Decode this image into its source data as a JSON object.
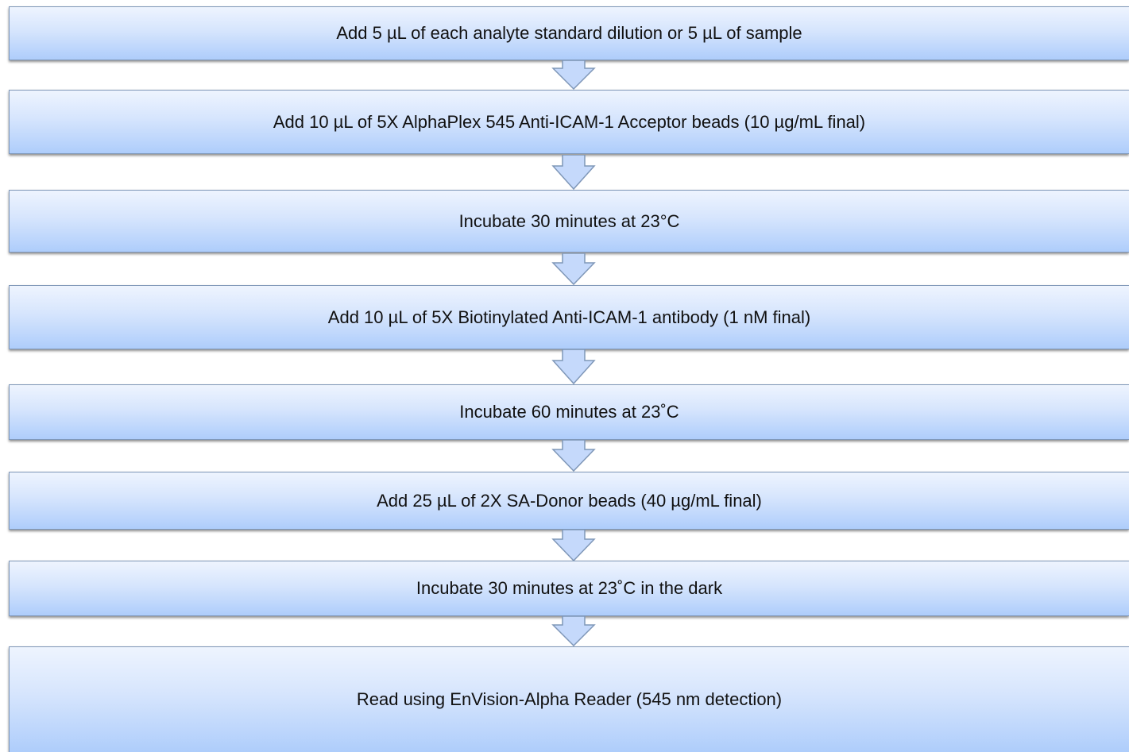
{
  "steps": [
    {
      "label": "Add 5 µL of each analyte standard dilution or 5 µL of sample"
    },
    {
      "label": "Add 10 µL of 5X AlphaPlex 545 Anti-ICAM-1 Acceptor beads (10 µg/mL final)"
    },
    {
      "label": "Incubate 30 minutes at 23°C"
    },
    {
      "label": "Add 10 µL of 5X Biotinylated Anti-ICAM-1 antibody (1 nM final)"
    },
    {
      "label": "Incubate 60 minutes at 23˚C"
    },
    {
      "label": "Add 25 µL of 2X SA-Donor beads (40 µg/mL final)"
    },
    {
      "label": "Incubate 30 minutes at 23˚C in the dark"
    },
    {
      "label": "Read using EnVision-Alpha Reader (545 nm detection)"
    }
  ],
  "colors": {
    "box_top": "#eef4fe",
    "box_bottom": "#aecdfb",
    "box_border": "#7f97b8",
    "arrow_fill": "#c5d9fb",
    "arrow_stroke": "#7f97b8"
  }
}
